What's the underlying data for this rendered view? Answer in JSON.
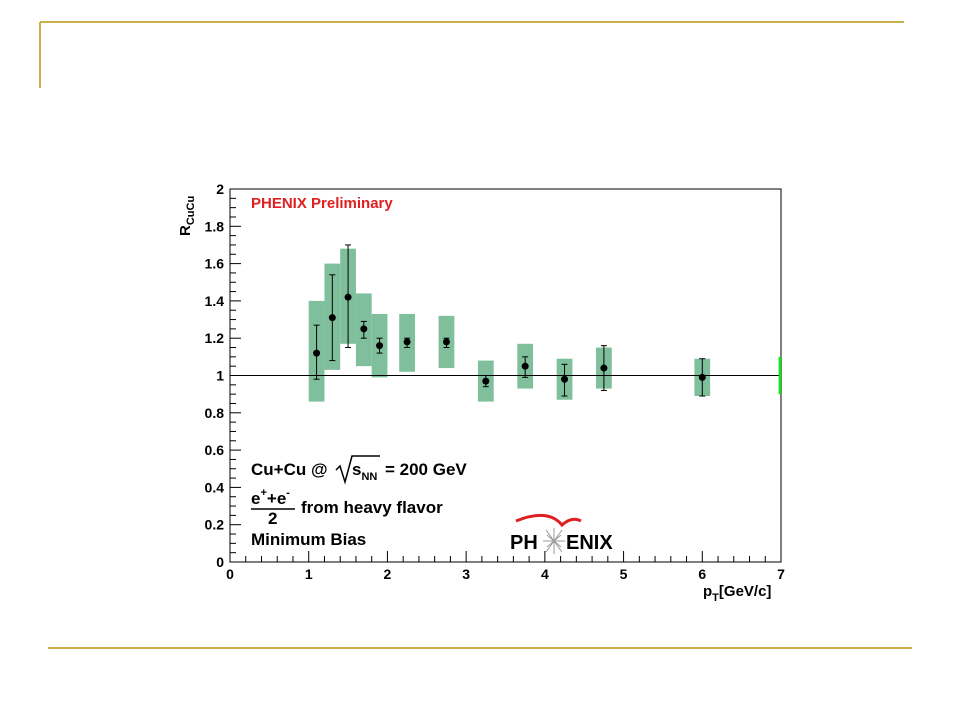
{
  "slide": {
    "accent_color": "#c9b04a"
  },
  "chart_data": {
    "type": "scatter",
    "title": "",
    "preliminary_label": "PHENIX Preliminary",
    "ylabel": {
      "main": "R",
      "sub": "CuCu"
    },
    "xlabel": {
      "main": "p",
      "sub": "T",
      "rest": "[GeV/c]"
    },
    "xlim": [
      0,
      7
    ],
    "ylim": [
      0,
      2
    ],
    "xticks": [
      "0",
      "1",
      "2",
      "3",
      "4",
      "5",
      "6",
      "7"
    ],
    "yticks": [
      "0",
      "0.2",
      "0.4",
      "0.6",
      "0.8",
      "1",
      "1.2",
      "1.4",
      "1.6",
      "1.8",
      "2"
    ],
    "reference_line": 1,
    "global_uncertainty": {
      "x": [
        6.9,
        7.0
      ],
      "y": [
        0.9,
        1.1
      ],
      "color": "#00ee00"
    },
    "colors": {
      "syst_box": "#7fbf9c",
      "marker": "#000000",
      "label_red": "#e02020"
    },
    "series": [
      {
        "points": [
          {
            "x": 1.1,
            "y": 1.12,
            "stat_lo": 0.98,
            "stat_hi": 1.27,
            "sys_lo": 0.86,
            "sys_hi": 1.4
          },
          {
            "x": 1.3,
            "y": 1.31,
            "stat_lo": 1.08,
            "stat_hi": 1.54,
            "sys_lo": 1.03,
            "sys_hi": 1.6
          },
          {
            "x": 1.5,
            "y": 1.42,
            "stat_lo": 1.15,
            "stat_hi": 1.7,
            "sys_lo": 1.17,
            "sys_hi": 1.68
          },
          {
            "x": 1.7,
            "y": 1.25,
            "stat_lo": 1.2,
            "stat_hi": 1.29,
            "sys_lo": 1.05,
            "sys_hi": 1.44
          },
          {
            "x": 1.9,
            "y": 1.16,
            "stat_lo": 1.12,
            "stat_hi": 1.2,
            "sys_lo": 0.99,
            "sys_hi": 1.33
          },
          {
            "x": 2.25,
            "y": 1.18,
            "stat_lo": 1.15,
            "stat_hi": 1.2,
            "sys_lo": 1.02,
            "sys_hi": 1.33
          },
          {
            "x": 2.75,
            "y": 1.18,
            "stat_lo": 1.15,
            "stat_hi": 1.2,
            "sys_lo": 1.04,
            "sys_hi": 1.32
          },
          {
            "x": 3.25,
            "y": 0.97,
            "stat_lo": 0.94,
            "stat_hi": 1.0,
            "sys_lo": 0.86,
            "sys_hi": 1.08
          },
          {
            "x": 3.75,
            "y": 1.05,
            "stat_lo": 0.99,
            "stat_hi": 1.1,
            "sys_lo": 0.93,
            "sys_hi": 1.17
          },
          {
            "x": 4.25,
            "y": 0.98,
            "stat_lo": 0.89,
            "stat_hi": 1.06,
            "sys_lo": 0.87,
            "sys_hi": 1.09
          },
          {
            "x": 4.75,
            "y": 1.04,
            "stat_lo": 0.92,
            "stat_hi": 1.16,
            "sys_lo": 0.93,
            "sys_hi": 1.15
          },
          {
            "x": 6.0,
            "y": 0.99,
            "stat_lo": 0.89,
            "stat_hi": 1.09,
            "sys_lo": 0.89,
            "sys_hi": 1.09
          }
        ]
      }
    ],
    "annotations": {
      "system": "Cu+Cu @",
      "sqrt_s": "s",
      "sqrt_s_sub": "NN",
      "energy": "= 200 GeV",
      "numerator": "e",
      "numerator_plus": "+",
      "numerator_mid": "+e",
      "numerator_minus": "-",
      "denominator": "2",
      "flavor_text": "from heavy flavor",
      "centrality": "Minimum Bias"
    },
    "logo": {
      "left": "PH",
      "right": "ENIX",
      "color": "#e02020"
    }
  }
}
